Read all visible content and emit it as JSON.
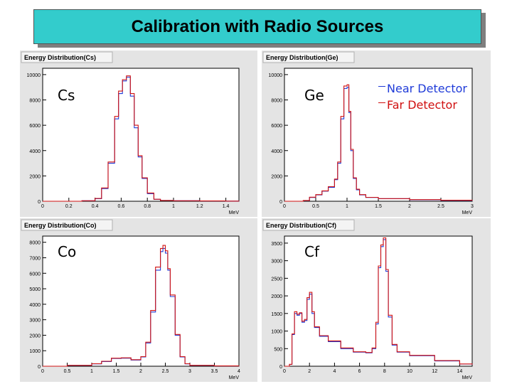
{
  "title": "Calibration with Radio Sources",
  "legend": [
    {
      "name": "Near Detector",
      "color": "#1f3bd8"
    },
    {
      "name": "Far Detector",
      "color": "#d01010"
    }
  ],
  "chart_data": [
    {
      "type": "line",
      "title": "Energy Distribution(Cs)",
      "label": "Cs",
      "xlabel": "MeV",
      "xlim": [
        0,
        1.5
      ],
      "ylim": [
        0,
        10500
      ],
      "xticks": [
        "0",
        "0.2",
        "0.4",
        "0.6",
        "0.8",
        "1",
        "1.2",
        "1.4"
      ],
      "yticks": [
        "0",
        "2000",
        "4000",
        "6000",
        "8000",
        "10000"
      ],
      "series": [
        {
          "name": "Near Detector",
          "color": "#1f3bd8",
          "x": [
            0.0,
            0.3,
            0.4,
            0.45,
            0.5,
            0.55,
            0.58,
            0.61,
            0.64,
            0.67,
            0.7,
            0.73,
            0.76,
            0.8,
            0.85,
            0.9,
            1.0,
            1.2,
            1.4,
            1.5
          ],
          "y": [
            0,
            40,
            200,
            1000,
            3000,
            6500,
            8500,
            9500,
            9800,
            8300,
            5800,
            3500,
            1800,
            600,
            150,
            60,
            40,
            20,
            10,
            0
          ]
        },
        {
          "name": "Far Detector",
          "color": "#d01010",
          "x": [
            0.0,
            0.3,
            0.4,
            0.45,
            0.5,
            0.55,
            0.58,
            0.61,
            0.64,
            0.67,
            0.7,
            0.73,
            0.76,
            0.8,
            0.85,
            0.9,
            1.0,
            1.2,
            1.4,
            1.5
          ],
          "y": [
            0,
            40,
            220,
            1050,
            3100,
            6700,
            8700,
            9600,
            9900,
            8500,
            6000,
            3600,
            1850,
            650,
            160,
            60,
            40,
            20,
            10,
            0
          ]
        }
      ]
    },
    {
      "type": "line",
      "title": "Energy Distribution(Ge)",
      "label": "Ge",
      "xlabel": "MeV",
      "xlim": [
        0,
        3
      ],
      "ylim": [
        0,
        10500
      ],
      "xticks": [
        "0",
        "0.5",
        "1",
        "1.5",
        "2",
        "2.5",
        "3"
      ],
      "yticks": [
        "0",
        "2000",
        "4000",
        "6000",
        "8000",
        "10000"
      ],
      "series": [
        {
          "name": "Near Detector",
          "color": "#1f3bd8",
          "x": [
            0.0,
            0.3,
            0.4,
            0.5,
            0.6,
            0.7,
            0.8,
            0.85,
            0.9,
            0.95,
            1.0,
            1.03,
            1.06,
            1.1,
            1.15,
            1.2,
            1.3,
            1.5,
            2.0,
            2.5,
            3.0
          ],
          "y": [
            0,
            50,
            300,
            500,
            800,
            1100,
            1700,
            3000,
            6500,
            8900,
            9000,
            7000,
            4000,
            1800,
            900,
            500,
            300,
            200,
            120,
            70,
            40
          ]
        },
        {
          "name": "Far Detector",
          "color": "#d01010",
          "x": [
            0.0,
            0.3,
            0.4,
            0.5,
            0.6,
            0.7,
            0.8,
            0.85,
            0.9,
            0.95,
            1.0,
            1.03,
            1.06,
            1.1,
            1.15,
            1.2,
            1.3,
            1.5,
            2.0,
            2.5,
            3.0
          ],
          "y": [
            0,
            60,
            320,
            520,
            820,
            1150,
            1750,
            3100,
            6700,
            9100,
            9200,
            7100,
            4100,
            1850,
            950,
            520,
            310,
            210,
            130,
            80,
            50
          ]
        }
      ]
    },
    {
      "type": "line",
      "title": "Energy Distribution(Co)",
      "label": "Co",
      "xlabel": "MeV",
      "xlim": [
        0,
        4
      ],
      "ylim": [
        0,
        8400
      ],
      "xticks": [
        "0",
        "0.5",
        "1",
        "1.5",
        "2",
        "2.5",
        "3",
        "3.5",
        "4"
      ],
      "yticks": [
        "0",
        "1000",
        "2000",
        "3000",
        "4000",
        "5000",
        "6000",
        "7000",
        "8000"
      ],
      "series": [
        {
          "name": "Near Detector",
          "color": "#1f3bd8",
          "x": [
            0.0,
            0.5,
            1.0,
            1.2,
            1.4,
            1.6,
            1.8,
            2.0,
            2.1,
            2.2,
            2.3,
            2.4,
            2.45,
            2.5,
            2.55,
            2.6,
            2.7,
            2.8,
            2.9,
            3.0,
            3.5,
            4.0
          ],
          "y": [
            0,
            50,
            150,
            300,
            500,
            520,
            400,
            600,
            1500,
            3500,
            6200,
            7400,
            7600,
            7300,
            6200,
            4500,
            2000,
            600,
            150,
            50,
            20,
            0
          ]
        },
        {
          "name": "Far Detector",
          "color": "#d01010",
          "x": [
            0.0,
            0.5,
            1.0,
            1.2,
            1.4,
            1.6,
            1.8,
            2.0,
            2.1,
            2.2,
            2.3,
            2.4,
            2.45,
            2.5,
            2.55,
            2.6,
            2.7,
            2.8,
            2.9,
            3.0,
            3.5,
            4.0
          ],
          "y": [
            0,
            55,
            160,
            320,
            520,
            540,
            420,
            620,
            1550,
            3600,
            6400,
            7600,
            7800,
            7450,
            6300,
            4600,
            2050,
            620,
            160,
            55,
            20,
            0
          ]
        }
      ]
    },
    {
      "type": "line",
      "title": "Energy Distribution(Cf)",
      "label": "Cf",
      "xlabel": "MeV",
      "xlim": [
        0,
        15
      ],
      "ylim": [
        0,
        3700
      ],
      "xticks": [
        "0",
        "2",
        "4",
        "6",
        "8",
        "10",
        "12",
        "14"
      ],
      "yticks": [
        "0",
        "500",
        "1000",
        "1500",
        "2000",
        "2500",
        "3000",
        "3500"
      ],
      "series": [
        {
          "name": "Near Detector",
          "color": "#1f3bd8",
          "x": [
            0.0,
            0.4,
            0.6,
            0.8,
            1.0,
            1.2,
            1.4,
            1.6,
            1.8,
            2.0,
            2.2,
            2.4,
            2.8,
            3.5,
            4.5,
            5.5,
            6.5,
            7.0,
            7.3,
            7.5,
            7.7,
            7.9,
            8.1,
            8.3,
            8.6,
            9.0,
            10.0,
            12.0,
            14.0,
            15.0
          ],
          "y": [
            0,
            50,
            900,
            1500,
            1450,
            1500,
            1250,
            1300,
            1900,
            2050,
            1500,
            1100,
            850,
            700,
            500,
            400,
            380,
            500,
            1200,
            2800,
            3400,
            3600,
            2700,
            1400,
            600,
            400,
            300,
            150,
            60,
            40
          ]
        },
        {
          "name": "Far Detector",
          "color": "#d01010",
          "x": [
            0.0,
            0.4,
            0.6,
            0.8,
            1.0,
            1.2,
            1.4,
            1.6,
            1.8,
            2.0,
            2.2,
            2.4,
            2.8,
            3.5,
            4.5,
            5.5,
            6.5,
            7.0,
            7.3,
            7.5,
            7.7,
            7.9,
            8.1,
            8.3,
            8.6,
            9.0,
            10.0,
            12.0,
            14.0,
            15.0
          ],
          "y": [
            0,
            55,
            920,
            1550,
            1480,
            1520,
            1280,
            1330,
            1950,
            2100,
            1550,
            1120,
            870,
            720,
            520,
            410,
            390,
            520,
            1250,
            2850,
            3450,
            3650,
            2750,
            1450,
            620,
            410,
            310,
            160,
            65,
            45
          ]
        }
      ]
    }
  ]
}
